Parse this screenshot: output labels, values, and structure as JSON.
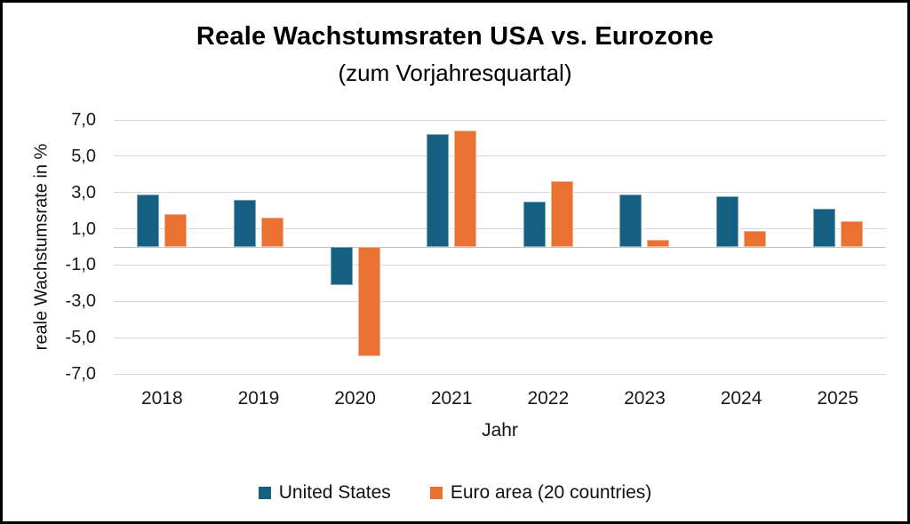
{
  "page": {
    "background": "#FFFFFF",
    "frame_border_color": "#000000"
  },
  "chart_data": {
    "type": "bar",
    "title": "Reale Wachstumsraten USA vs. Eurozone",
    "subtitle": "(zum Vorjahresquartal)",
    "xlabel": "Jahr",
    "ylabel": "reale Wachstumsrate in %",
    "categories": [
      "2018",
      "2019",
      "2020",
      "2021",
      "2022",
      "2023",
      "2024",
      "2025"
    ],
    "series": [
      {
        "name": "United States",
        "color": "#156082",
        "values": [
          2.9,
          2.6,
          -2.1,
          6.2,
          2.5,
          2.9,
          2.8,
          2.1
        ]
      },
      {
        "name": "Euro area (20 countries)",
        "color": "#E97132",
        "values": [
          1.8,
          1.6,
          -6.0,
          6.4,
          3.6,
          0.4,
          0.9,
          1.4
        ]
      }
    ],
    "ylim": [
      -7,
      7
    ],
    "ytick_step": 2,
    "ytick_labels": [
      "7,0",
      "5,0",
      "3,0",
      "1,0",
      "-1,0",
      "-3,0",
      "-5,0",
      "-7,0"
    ],
    "grid": true,
    "gridline_color": "#D9D9D9",
    "zero_line_color": "#BFBFBF",
    "legend_position": "bottom"
  }
}
